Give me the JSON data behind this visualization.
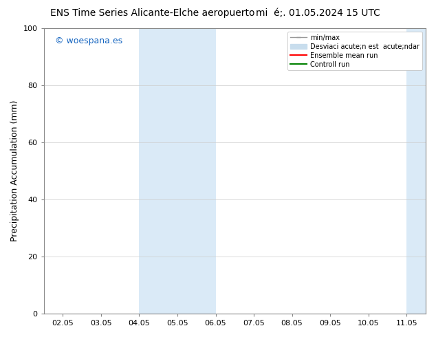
{
  "title_left": "ENS Time Series Alicante-Elche aeropuerto",
  "title_right": "mi  acute;. 01.05.2024 15 UTC",
  "ylabel": "Precipitation Accumulation (mm)",
  "ylim": [
    0,
    100
  ],
  "yticks": [
    0,
    20,
    40,
    60,
    80,
    100
  ],
  "x_tick_labels": [
    "02.05",
    "03.05",
    "04.05",
    "05.05",
    "06.05",
    "07.05",
    "08.05",
    "09.05",
    "10.05",
    "11.05"
  ],
  "x_tick_positions": [
    0,
    1,
    2,
    3,
    4,
    5,
    6,
    7,
    8,
    9
  ],
  "xlim": [
    -0.5,
    9.5
  ],
  "shaded_bands": [
    {
      "x_start": 2.0,
      "x_end": 4.0
    },
    {
      "x_start": 9.0,
      "x_end": 9.5
    }
  ],
  "band_color": "#daeaf7",
  "watermark_text": "© woespana.es",
  "watermark_color": "#1565c0",
  "legend_labels": [
    "min/max",
    "Desviaci acute;n est  acute;ndar",
    "Ensemble mean run",
    "Controll run"
  ],
  "legend_colors": [
    "#888888",
    "#c8dded",
    "red",
    "green"
  ],
  "title_fontsize": 10,
  "tick_fontsize": 8,
  "label_fontsize": 9,
  "watermark_fontsize": 9,
  "background_color": "#ffffff",
  "plot_bg_color": "#ffffff"
}
